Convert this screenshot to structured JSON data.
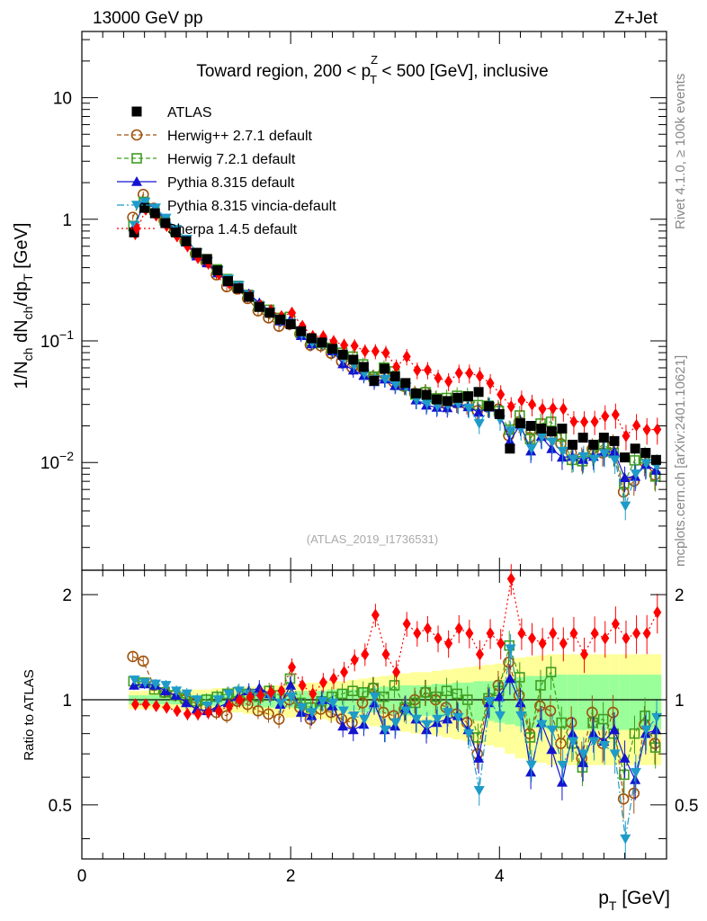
{
  "header": {
    "energy": "13000 GeV pp",
    "process": "Z+Jet"
  },
  "side_labels": {
    "rivet": "Rivet 4.1.0, ≥ 100k events",
    "mcplots": "mcplots.cern.ch [arXiv:2401.10621]"
  },
  "chart_data": {
    "type": "scatter",
    "title_parts": {
      "pre": "Toward region, 200 < p",
      "sup": "Z",
      "sub": "T",
      "post": " < 500 [GeV], inclusive"
    },
    "analysis_id": "(ATLAS_2019_I1736531)",
    "ylabel": {
      "p1": "1/N",
      "s1": "ch",
      "p2": " dN",
      "s2": "ch",
      "p3": "/dp",
      "s3": "T",
      "p4": " [GeV]"
    },
    "xlabel": {
      "main": "p",
      "sub": "T",
      "unit": " [GeV]"
    },
    "ratio_label": "Ratio to ATLAS",
    "xlim": [
      0,
      5.6
    ],
    "ylim_log": [
      0.0013,
      35
    ],
    "ratio_ylim": [
      0.35,
      2.35
    ],
    "xticks": [
      {
        "value": 0,
        "label": "0"
      },
      {
        "value": 2,
        "label": "2"
      },
      {
        "value": 4,
        "label": "4"
      }
    ],
    "yticks_main": [
      {
        "value": 10,
        "label": "10"
      },
      {
        "value": 1,
        "label": "1"
      },
      {
        "value": 0.1,
        "label": "10",
        "exp": "−1"
      },
      {
        "value": 0.01,
        "label": "10",
        "exp": "−2"
      }
    ],
    "yticks_ratio": [
      {
        "value": 2,
        "label": "2"
      },
      {
        "value": 1,
        "label": "1"
      },
      {
        "value": 0.5,
        "label": "0.5"
      }
    ],
    "x": [
      0.5,
      0.6,
      0.7,
      0.8,
      0.9,
      1.0,
      1.1,
      1.2,
      1.3,
      1.4,
      1.5,
      1.6,
      1.7,
      1.8,
      1.9,
      2.0,
      2.1,
      2.2,
      2.3,
      2.4,
      2.5,
      2.6,
      2.7,
      2.8,
      2.9,
      3.0,
      3.1,
      3.2,
      3.3,
      3.4,
      3.5,
      3.6,
      3.7,
      3.8,
      3.9,
      4.0,
      4.1,
      4.2,
      4.3,
      4.4,
      4.5,
      4.6,
      4.7,
      4.8,
      4.9,
      5.0,
      5.1,
      5.2,
      5.3,
      5.4,
      5.5
    ],
    "atlas": [
      0.78,
      1.24,
      1.12,
      0.93,
      0.78,
      0.66,
      0.53,
      0.47,
      0.38,
      0.31,
      0.27,
      0.23,
      0.19,
      0.17,
      0.15,
      0.137,
      0.12,
      0.105,
      0.097,
      0.086,
      0.077,
      0.07,
      0.061,
      0.047,
      0.059,
      0.051,
      0.045,
      0.037,
      0.036,
      0.033,
      0.032,
      0.034,
      0.035,
      0.038,
      0.029,
      0.025,
      0.013,
      0.021,
      0.02,
      0.019,
      0.018,
      0.019,
      0.014,
      0.016,
      0.014,
      0.016,
      0.015,
      0.011,
      0.013,
      0.012,
      0.0105
    ],
    "legend_position": "top-left",
    "series": [
      {
        "name": "ATLAS",
        "key": "atlas",
        "color": "#000000",
        "marker": "square-filled",
        "line": "none"
      },
      {
        "name": "Herwig++ 2.7.1 default",
        "key": "herwigpp",
        "color": "#a0520c",
        "marker": "circle-open",
        "line": "dashed",
        "ratio": [
          1.33,
          1.29,
          1.1,
          1.05,
          1.03,
          1.0,
          0.98,
          0.95,
          0.92,
          0.9,
          0.99,
          0.97,
          0.93,
          0.91,
          0.88,
          1.0,
          0.95,
          0.88,
          0.94,
          0.92,
          0.88,
          0.86,
          0.98,
          1.08,
          0.92,
          0.9,
          0.94,
          1.0,
          1.05,
          1.0,
          0.95,
          0.91,
          0.86,
          0.7,
          0.99,
          1.1,
          1.28,
          1.03,
          0.8,
          0.96,
          0.93,
          0.75,
          0.86,
          0.68,
          0.92,
          0.75,
          0.92,
          0.52,
          0.54,
          0.85,
          0.75
        ]
      },
      {
        "name": "Herwig 7.2.1 default",
        "key": "herwig7",
        "color": "#3f9d1f",
        "marker": "square-open",
        "line": "dashed",
        "ratio": [
          1.13,
          1.12,
          1.07,
          1.05,
          1.03,
          1.01,
          0.99,
          1.0,
          1.02,
          1.04,
          1.05,
          1.04,
          1.02,
          1.06,
          1.03,
          1.15,
          0.98,
          0.95,
          0.99,
          1.02,
          1.04,
          1.06,
          1.05,
          1.08,
          1.02,
          1.1,
          0.95,
          0.98,
          1.05,
          1.02,
          1.06,
          1.04,
          1.0,
          0.78,
          1.01,
          1.06,
          1.43,
          1.16,
          0.78,
          1.1,
          1.2,
          0.86,
          0.75,
          0.64,
          0.86,
          0.88,
          0.8,
          0.61,
          0.8,
          0.9,
          0.73
        ]
      },
      {
        "name": "Pythia 8.315 default",
        "key": "pythia",
        "color": "#1414cf",
        "marker": "triangle-up",
        "line": "solid",
        "ratio": [
          1.1,
          1.11,
          1.1,
          1.06,
          1.03,
          0.98,
          0.94,
          0.93,
          0.95,
          0.98,
          1.02,
          1.06,
          1.08,
          1.04,
          0.97,
          1.1,
          0.92,
          0.9,
          1.0,
          0.96,
          0.84,
          0.82,
          0.85,
          0.98,
          0.82,
          0.84,
          0.95,
          0.88,
          0.82,
          0.86,
          0.88,
          0.9,
          0.82,
          0.68,
          0.98,
          1.02,
          1.15,
          0.98,
          0.62,
          0.86,
          0.72,
          0.58,
          0.8,
          0.66,
          0.8,
          0.76,
          0.82,
          0.68,
          0.59,
          0.8,
          0.82
        ]
      },
      {
        "name": "Pythia 8.315 vincia-default",
        "key": "vincia",
        "color": "#1e9bc8",
        "marker": "triangle-down",
        "line": "dashdot",
        "ratio": [
          1.14,
          1.12,
          1.11,
          1.1,
          1.06,
          1.04,
          1.0,
          0.96,
          1.0,
          1.04,
          1.06,
          1.04,
          1.02,
          1.02,
          0.98,
          1.02,
          0.95,
          0.92,
          0.99,
          0.98,
          0.93,
          0.9,
          0.88,
          1.02,
          0.82,
          0.86,
          0.93,
          0.88,
          0.85,
          0.88,
          0.92,
          0.89,
          0.8,
          0.55,
          0.99,
          0.9,
          1.4,
          0.9,
          0.65,
          0.85,
          0.82,
          0.65,
          0.76,
          0.7,
          0.76,
          0.74,
          0.7,
          0.4,
          0.62,
          0.82,
          0.89
        ]
      },
      {
        "name": "Sherpa 1.4.5 default",
        "key": "sherpa",
        "color": "#ff0000",
        "marker": "diamond-filled",
        "line": "dotted",
        "ratio": [
          0.97,
          0.97,
          0.96,
          0.95,
          0.93,
          0.91,
          0.91,
          0.92,
          0.93,
          0.96,
          1.0,
          1.02,
          1.03,
          1.05,
          1.06,
          1.24,
          1.1,
          1.04,
          1.12,
          1.15,
          1.2,
          1.3,
          1.35,
          1.75,
          1.35,
          1.2,
          1.65,
          1.55,
          1.6,
          1.5,
          1.45,
          1.6,
          1.55,
          1.35,
          1.55,
          1.45,
          2.22,
          1.55,
          1.5,
          1.45,
          1.55,
          1.45,
          1.55,
          1.35,
          1.55,
          1.5,
          1.65,
          1.5,
          1.55,
          1.55,
          1.78
        ]
      }
    ],
    "ratio_bands": {
      "note": "stat+syst uncertainty of ATLAS data",
      "outer_color": "#ffff99",
      "inner_color": "#99ff99",
      "outer": [
        0.06,
        0.06,
        0.06,
        0.06,
        0.06,
        0.07,
        0.07,
        0.07,
        0.08,
        0.08,
        0.08,
        0.09,
        0.09,
        0.1,
        0.1,
        0.11,
        0.11,
        0.12,
        0.12,
        0.13,
        0.13,
        0.14,
        0.15,
        0.16,
        0.17,
        0.18,
        0.19,
        0.2,
        0.2,
        0.21,
        0.22,
        0.23,
        0.24,
        0.25,
        0.26,
        0.27,
        0.3,
        0.32,
        0.33,
        0.34,
        0.35,
        0.35,
        0.35,
        0.35,
        0.35,
        0.35,
        0.35,
        0.35,
        0.35,
        0.35,
        0.35
      ],
      "inner": [
        0.03,
        0.03,
        0.03,
        0.03,
        0.03,
        0.03,
        0.03,
        0.04,
        0.04,
        0.04,
        0.04,
        0.04,
        0.05,
        0.05,
        0.05,
        0.05,
        0.06,
        0.06,
        0.06,
        0.07,
        0.07,
        0.07,
        0.08,
        0.08,
        0.09,
        0.09,
        0.1,
        0.1,
        0.1,
        0.11,
        0.11,
        0.12,
        0.12,
        0.13,
        0.13,
        0.14,
        0.15,
        0.16,
        0.17,
        0.17,
        0.18,
        0.18,
        0.18,
        0.18,
        0.18,
        0.18,
        0.18,
        0.18,
        0.18,
        0.18,
        0.18
      ]
    }
  }
}
